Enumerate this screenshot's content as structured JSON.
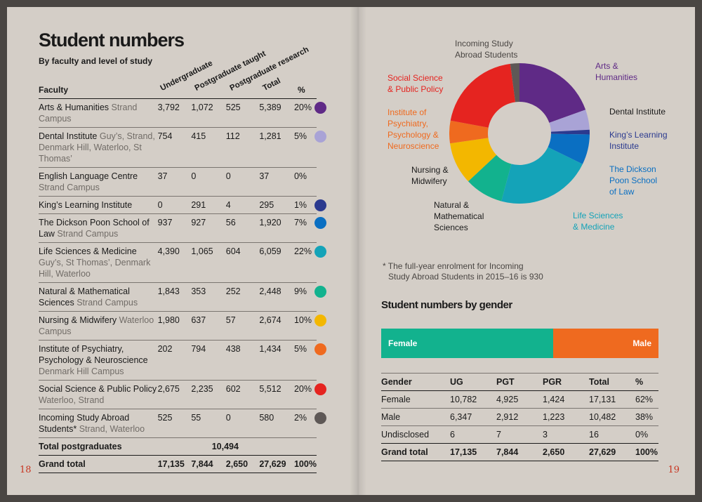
{
  "left": {
    "title": "Student numbers",
    "subtitle": "By faculty and level of study",
    "rotated_headers": [
      "Undergraduate",
      "Postgraduate taught",
      "Postgraduate research"
    ],
    "col_faculty": "Faculty",
    "col_total": "Total",
    "col_pct": "%",
    "rows": [
      {
        "name": "Arts & Humanities",
        "sub": "Strand Campus",
        "ug": "3,792",
        "pgt": "1,072",
        "pgr": "525",
        "total": "5,389",
        "pct": "20%",
        "color": "#5f2a86"
      },
      {
        "name": "Dental Institute",
        "sub": "Guy’s, Strand, Denmark Hill, Waterloo, St Thomas’",
        "ug": "754",
        "pgt": "415",
        "pgr": "112",
        "total": "1,281",
        "pct": "5%",
        "color": "#a9a3d6"
      },
      {
        "name": "English Language Centre",
        "sub": "Strand Campus",
        "ug": "37",
        "pgt": "0",
        "pgr": "0",
        "total": "37",
        "pct": "0%",
        "color": ""
      },
      {
        "name": "King’s Learning Institute",
        "sub": "",
        "ug": "0",
        "pgt": "291",
        "pgr": "4",
        "total": "295",
        "pct": "1%",
        "color": "#2b3a8f"
      },
      {
        "name": "The Dickson Poon School of Law",
        "sub": "Strand Campus",
        "ug": "937",
        "pgt": "927",
        "pgr": "56",
        "total": "1,920",
        "pct": "7%",
        "color": "#0a6fc2"
      },
      {
        "name": "Life Sciences & Medicine",
        "sub": "Guy’s, St Thomas’, Denmark Hill, Waterloo",
        "ug": "4,390",
        "pgt": "1,065",
        "pgr": "604",
        "total": "6,059",
        "pct": "22%",
        "color": "#14a3b8"
      },
      {
        "name": "Natural & Mathematical Sciences",
        "sub": "Strand Campus",
        "ug": "1,843",
        "pgt": "353",
        "pgr": "252",
        "total": "2,448",
        "pct": "9%",
        "color": "#12b28e"
      },
      {
        "name": "Nursing & Midwifery",
        "sub": "Waterloo Campus",
        "ug": "1,980",
        "pgt": "637",
        "pgr": "57",
        "total": "2,674",
        "pct": "10%",
        "color": "#f3b700"
      },
      {
        "name": "Institute of Psychiatry, Psychology & Neuroscience",
        "sub": "Denmark Hill Campus",
        "ug": "202",
        "pgt": "794",
        "pgr": "438",
        "total": "1,434",
        "pct": "5%",
        "color": "#ef6a1f"
      },
      {
        "name": "Social Science & Public Policy",
        "sub": "Waterloo, Strand",
        "ug": "2,675",
        "pgt": "2,235",
        "pgr": "602",
        "total": "5,512",
        "pct": "20%",
        "color": "#e52420"
      },
      {
        "name": "Incoming Study Abroad Students*",
        "sub": "Strand, Waterloo",
        "ug": "525",
        "pgt": "55",
        "pgr": "0",
        "total": "580",
        "pct": "2%",
        "color": "#5e5856"
      }
    ],
    "total_pg_label": "Total postgraduates",
    "total_pg_value": "10,494",
    "grand": {
      "label": "Grand total",
      "ug": "17,135",
      "pgt": "7,844",
      "pgr": "2,650",
      "total": "27,629",
      "pct": "100%"
    },
    "page_number": "18"
  },
  "right": {
    "donut_labels": {
      "study_abroad": "Incoming Study Abroad Students",
      "arts": "Arts & Humanities",
      "social": "Social Science & Public Policy",
      "dental": "Dental Institute",
      "kli": "King’s Learning Institute",
      "ioppn": "Institute of Psychiatry, Psychology & Neuroscience",
      "law": "The Dickson Poon School of Law",
      "nursing": "Nursing & Midwifery",
      "natural": "Natural & Mathematical Sciences",
      "life": "Life Sciences & Medicine"
    },
    "footnote_1": "* The full-year enrolment for Incoming",
    "footnote_2": "Study Abroad Students in 2015–16 is 930",
    "gender_title": "Student numbers by gender",
    "bar_female": "Female",
    "bar_male": "Male",
    "gender_headers": [
      "Gender",
      "UG",
      "PGT",
      "PGR",
      "Total",
      "%"
    ],
    "gender_rows": [
      [
        "Female",
        "10,782",
        "4,925",
        "1,424",
        "17,131",
        "62%"
      ],
      [
        "Male",
        "6,347",
        "2,912",
        "1,223",
        "10,482",
        "38%"
      ],
      [
        "Undisclosed",
        "6",
        "7",
        "3",
        "16",
        "0%"
      ]
    ],
    "gender_total": [
      "Grand total",
      "17,135",
      "7,844",
      "2,650",
      "27,629",
      "100%"
    ],
    "page_number": "19"
  },
  "chart_data": [
    {
      "type": "pie",
      "categories": [
        "Arts & Humanities",
        "Dental Institute",
        "King’s Learning Institute",
        "The Dickson Poon School of Law",
        "Life Sciences & Medicine",
        "Natural & Mathematical Sciences",
        "Nursing & Midwifery",
        "Institute of Psychiatry, Psychology & Neuroscience",
        "Social Science & Public Policy",
        "Incoming Study Abroad Students"
      ],
      "values": [
        5389,
        1281,
        295,
        1920,
        6059,
        2448,
        2674,
        1434,
        5512,
        580
      ],
      "colors": [
        "#5f2a86",
        "#a9a3d6",
        "#2b3a8f",
        "#0a6fc2",
        "#14a3b8",
        "#12b28e",
        "#f3b700",
        "#ef6a1f",
        "#e52420",
        "#5e5856"
      ],
      "donut": true
    },
    {
      "type": "bar",
      "orientation": "horizontal-stacked",
      "categories": [
        "Female",
        "Male"
      ],
      "values": [
        62,
        38
      ],
      "colors": [
        "#12b28e",
        "#ef6a1f"
      ]
    }
  ]
}
